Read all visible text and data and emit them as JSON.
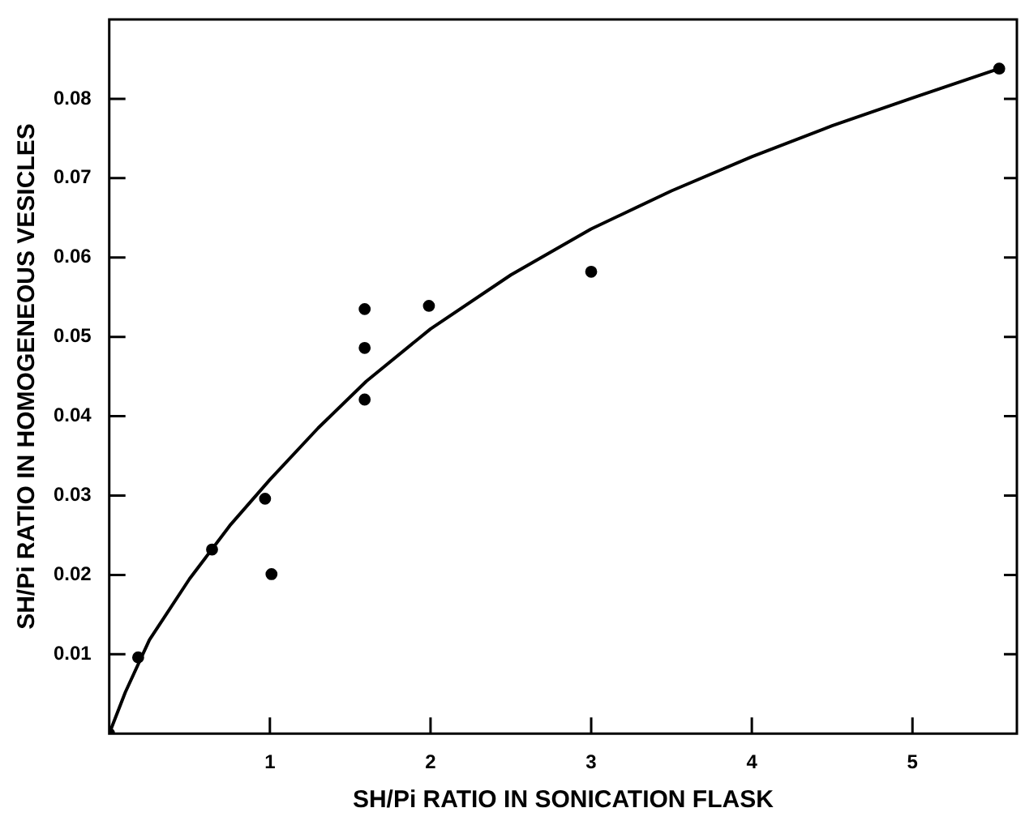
{
  "chart_data": {
    "type": "scatter",
    "xlabel": "SH/Pi RATIO IN SONICATION FLASK",
    "ylabel": "SH/Pi RATIO IN HOMOGENEOUS VESICLES",
    "xlim": [
      0,
      5.65
    ],
    "xticks": [
      1,
      2,
      3,
      4,
      5
    ],
    "ylim": [
      0,
      0.09
    ],
    "yticks": [
      0.01,
      0.02,
      0.03,
      0.04,
      0.05,
      0.06,
      0.07,
      0.08
    ],
    "grid": false,
    "legend": false,
    "marker": "circle",
    "series": [
      {
        "color": "#000000",
        "x": [
          0,
          0.18,
          0.64,
          0.97,
          1.01,
          1.59,
          1.59,
          1.59,
          1.99,
          3.0,
          5.54
        ],
        "values": [
          0,
          0.0096,
          0.0232,
          0.0296,
          0.0201,
          0.0535,
          0.0486,
          0.0421,
          0.0539,
          0.0582,
          0.0838
        ]
      },
      {
        "type": "line",
        "color": "#000000",
        "marker": "none",
        "line_style": "solid",
        "x": [
          0,
          0.1,
          0.25,
          0.5,
          0.75,
          1,
          1.3,
          1.6,
          2,
          2.5,
          3,
          3.5,
          4,
          4.5,
          5,
          5.54
        ],
        "values": [
          0,
          0.0052,
          0.0118,
          0.0195,
          0.0262,
          0.032,
          0.0385,
          0.0444,
          0.051,
          0.0578,
          0.0636,
          0.0684,
          0.0727,
          0.0766,
          0.0801,
          0.0838
        ]
      }
    ]
  }
}
